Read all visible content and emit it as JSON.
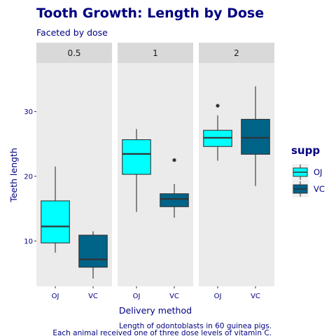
{
  "chart_data": {
    "type": "boxplot",
    "title": "Tooth Growth:  Length by Dose",
    "subtitle": "Faceted by dose",
    "xlabel": "Delivery method",
    "ylabel": "Teeth length",
    "ylim": [
      3,
      37.5
    ],
    "yticks": [
      10,
      20,
      30
    ],
    "grid": false,
    "legend": {
      "title": "supp",
      "position": "right",
      "entries": [
        {
          "name": "OJ",
          "color": "#00FFFF"
        },
        {
          "name": "VC",
          "color": "#006388"
        }
      ]
    },
    "caption": [
      "Length of odontoblasts in 60 guinea pigs.",
      "Each animal received one of three dose levels of vitamin C."
    ],
    "facets": [
      {
        "label": "0.5",
        "boxes": [
          {
            "group": "OJ",
            "lower_whisker": 8.2,
            "q1": 9.7,
            "median": 12.25,
            "q3": 16.2,
            "upper_whisker": 21.5,
            "outliers": []
          },
          {
            "group": "VC",
            "lower_whisker": 4.2,
            "q1": 5.95,
            "median": 7.15,
            "q3": 10.9,
            "upper_whisker": 11.5,
            "outliers": []
          }
        ]
      },
      {
        "label": "1",
        "boxes": [
          {
            "group": "OJ",
            "lower_whisker": 14.5,
            "q1": 20.3,
            "median": 23.45,
            "q3": 25.65,
            "upper_whisker": 27.3,
            "outliers": []
          },
          {
            "group": "VC",
            "lower_whisker": 13.6,
            "q1": 15.3,
            "median": 16.5,
            "q3": 17.3,
            "upper_whisker": 18.8,
            "outliers": [
              22.5
            ]
          }
        ]
      },
      {
        "label": "2",
        "boxes": [
          {
            "group": "OJ",
            "lower_whisker": 22.4,
            "q1": 24.6,
            "median": 25.95,
            "q3": 27.1,
            "upper_whisker": 29.4,
            "outliers": [
              30.9
            ]
          },
          {
            "group": "VC",
            "lower_whisker": 18.5,
            "q1": 23.4,
            "median": 25.95,
            "q3": 28.8,
            "upper_whisker": 33.9,
            "outliers": []
          }
        ]
      }
    ]
  },
  "colors": {
    "panel_background": "#EBEBEB",
    "strip_background": "#D9D9D9",
    "box_line": "#333333",
    "text": "#000080"
  }
}
